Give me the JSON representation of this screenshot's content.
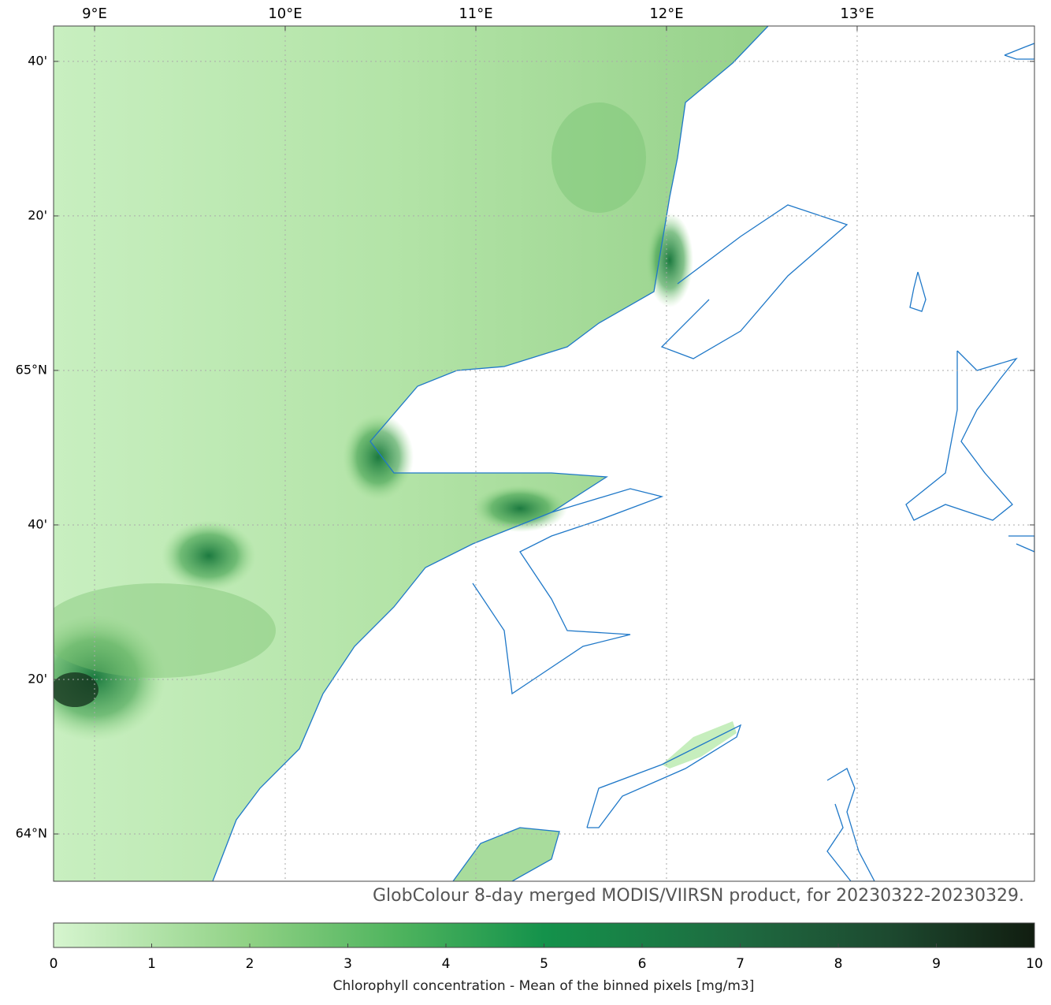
{
  "map": {
    "lonlim": [
      8.785,
      13.93
    ],
    "latlim": [
      63.898,
      65.743
    ],
    "lon_ticks": [
      {
        "value": 9,
        "label": "9°E"
      },
      {
        "value": 10,
        "label": "10°E"
      },
      {
        "value": 11,
        "label": "11°E"
      },
      {
        "value": 12,
        "label": "12°E"
      },
      {
        "value": 13,
        "label": "13°E"
      }
    ],
    "lat_ticks": [
      {
        "value": 65.6667,
        "label": "40'"
      },
      {
        "value": 65.3333,
        "label": "20'"
      },
      {
        "value": 65,
        "label": "65°N"
      },
      {
        "value": 64.6667,
        "label": "40'"
      },
      {
        "value": 64.3333,
        "label": "20'"
      },
      {
        "value": 64,
        "label": "64°N"
      }
    ],
    "grid": true,
    "caption": "GlobColour 8-day merged MODIS/VIIRSN product, for 20230322-20230329.",
    "colorbar": {
      "lim": [
        0,
        10
      ],
      "ticks": [
        0,
        1,
        2,
        3,
        4,
        5,
        6,
        7,
        8,
        9,
        10
      ],
      "label": "Chlorophyll concentration - Mean of the binned pixels  [mg/m3]",
      "colormap": [
        {
          "value": 0,
          "color": "#d6f5cf"
        },
        {
          "value": 2,
          "color": "#8fd184"
        },
        {
          "value": 3.5,
          "color": "#4fb45e"
        },
        {
          "value": 5,
          "color": "#14924b"
        },
        {
          "value": 7,
          "color": "#1e6a40"
        },
        {
          "value": 8.5,
          "color": "#1d4a30"
        },
        {
          "value": 10,
          "color": "#111d10"
        }
      ]
    }
  }
}
